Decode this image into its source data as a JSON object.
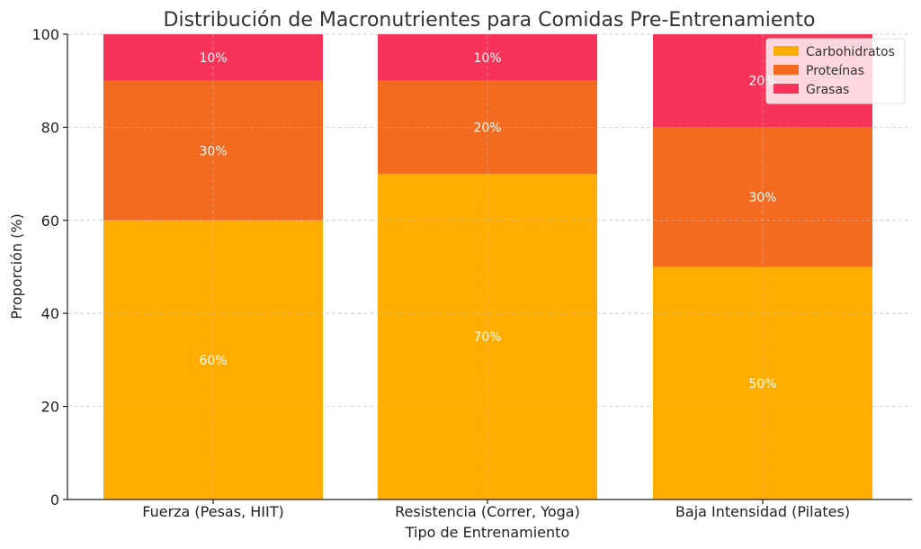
{
  "chart_data": {
    "type": "bar",
    "stacked": true,
    "title": "Distribución de Macronutrientes para Comidas Pre-Entrenamiento",
    "xlabel": "Tipo de Entrenamiento",
    "ylabel": "Proporción (%)",
    "ylim": [
      0,
      100
    ],
    "yticks": [
      0,
      20,
      40,
      60,
      80,
      100
    ],
    "grid": true,
    "legend_position": "top-right",
    "categories": [
      "Fuerza (Pesas, HIIT)",
      "Resistencia (Correr, Yoga)",
      "Baja Intensidad (Pilates)"
    ],
    "series": [
      {
        "name": "Carbohidratos",
        "color": "#ffad00",
        "values": [
          60,
          70,
          50
        ],
        "labels": [
          "60%",
          "70%",
          "50%"
        ]
      },
      {
        "name": "Proteínas",
        "color": "#f26b21",
        "values": [
          30,
          20,
          30
        ],
        "labels": [
          "30%",
          "20%",
          "30%"
        ]
      },
      {
        "name": "Grasas",
        "color": "#f8335a",
        "values": [
          10,
          10,
          20
        ],
        "labels": [
          "10%",
          "10%",
          "20%"
        ]
      }
    ]
  }
}
